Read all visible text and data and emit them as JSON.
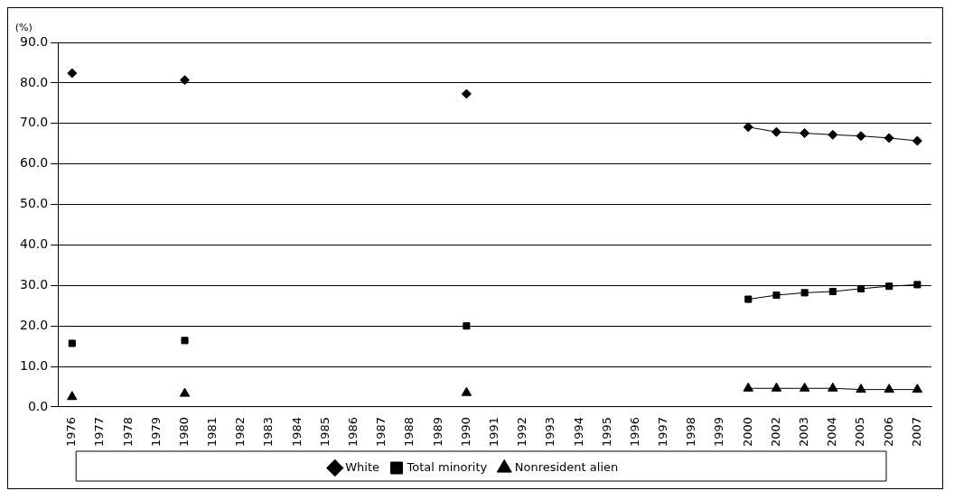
{
  "chart_data": {
    "type": "line",
    "ylabel": "(%)",
    "categories": [
      "1976",
      "1977",
      "1978",
      "1979",
      "1980",
      "1981",
      "1982",
      "1983",
      "1984",
      "1985",
      "1986",
      "1987",
      "1988",
      "1989",
      "1990",
      "1991",
      "1992",
      "1993",
      "1994",
      "1995",
      "1996",
      "1997",
      "1998",
      "1999",
      "2000",
      "2002",
      "2003",
      "2004",
      "2005",
      "2006",
      "2007"
    ],
    "series": [
      {
        "name": "White",
        "color": "#000000",
        "marker": "diamond",
        "values": [
          82.4,
          null,
          null,
          null,
          80.7,
          null,
          null,
          null,
          null,
          null,
          null,
          null,
          null,
          null,
          77.3,
          null,
          null,
          null,
          null,
          null,
          null,
          null,
          null,
          null,
          69.1,
          67.9,
          67.6,
          67.2,
          66.9,
          66.4,
          65.7
        ]
      },
      {
        "name": "Total minority",
        "color": "#000000",
        "marker": "square",
        "values": [
          15.7,
          null,
          null,
          null,
          16.4,
          null,
          null,
          null,
          null,
          null,
          null,
          null,
          null,
          null,
          20.0,
          null,
          null,
          null,
          null,
          null,
          null,
          null,
          null,
          null,
          26.6,
          27.6,
          28.2,
          28.5,
          29.2,
          29.8,
          30.2
        ]
      },
      {
        "name": "Nonresident alien",
        "color": "#000000",
        "marker": "triangle",
        "values": [
          2.5,
          null,
          null,
          null,
          3.3,
          null,
          null,
          null,
          null,
          null,
          null,
          null,
          null,
          null,
          3.5,
          null,
          null,
          null,
          null,
          null,
          null,
          null,
          null,
          null,
          4.6,
          4.6,
          4.6,
          4.6,
          4.3,
          4.3,
          4.3
        ]
      }
    ],
    "ylim": [
      0,
      90
    ],
    "yticks": [
      {
        "value": 0,
        "label": "0.0"
      },
      {
        "value": 10,
        "label": "10.0"
      },
      {
        "value": 20,
        "label": "20.0"
      },
      {
        "value": 30,
        "label": "30.0"
      },
      {
        "value": 40,
        "label": "40.0"
      },
      {
        "value": 50,
        "label": "50.0"
      },
      {
        "value": 60,
        "label": "60.0"
      },
      {
        "value": 70,
        "label": "70.0"
      },
      {
        "value": 80,
        "label": "80.0"
      },
      {
        "value": 90,
        "label": "90.0"
      }
    ],
    "grid": "y",
    "legend": "bottom",
    "line_style": "solid"
  }
}
